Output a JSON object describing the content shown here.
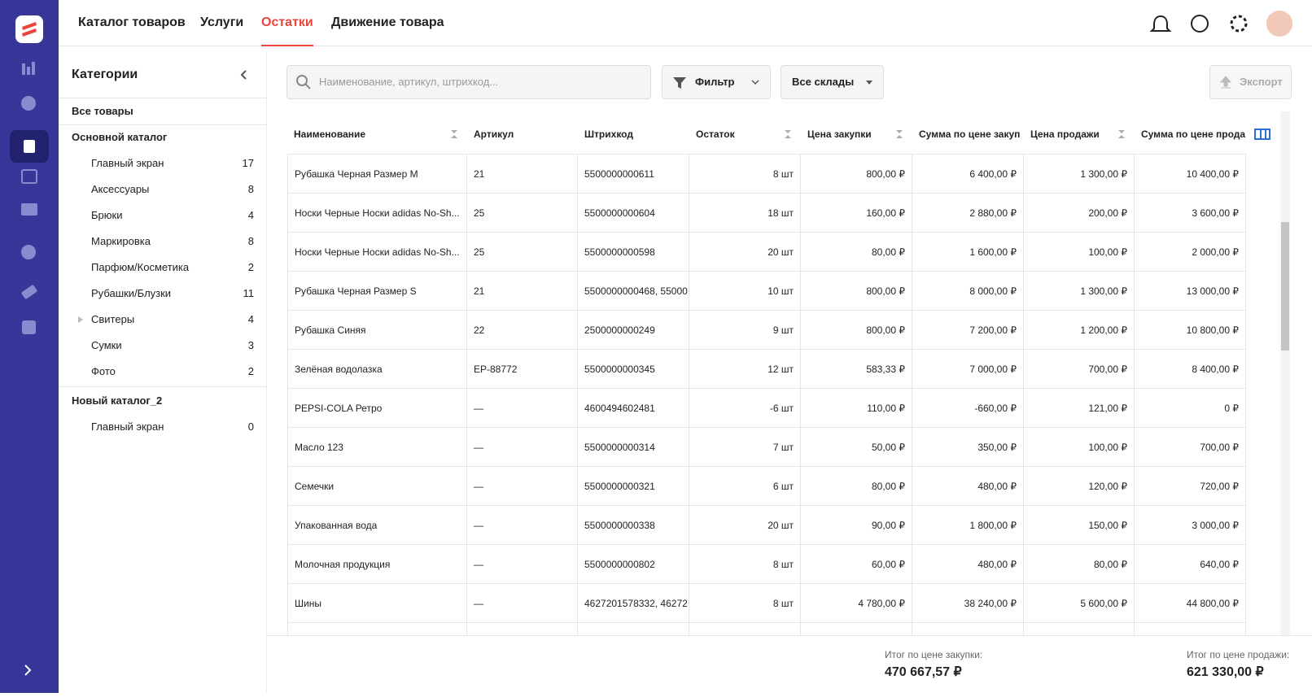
{
  "nav": {
    "tabs": [
      "Каталог товаров",
      "Услуги",
      "Остатки",
      "Движение товара"
    ],
    "active": 2
  },
  "sidebar": {
    "title": "Категории",
    "items": [
      {
        "label": "Все товары",
        "level": 0
      },
      {
        "label": "Основной каталог",
        "level": 0
      },
      {
        "label": "Главный экран",
        "level": 1,
        "count": "17"
      },
      {
        "label": "Аксессуары",
        "level": 1,
        "count": "8"
      },
      {
        "label": "Брюки",
        "level": 1,
        "count": "4"
      },
      {
        "label": "Маркировка",
        "level": 1,
        "count": "8"
      },
      {
        "label": "Парфюм/Косметика",
        "level": 1,
        "count": "2"
      },
      {
        "label": "Рубашки/Блузки",
        "level": 1,
        "count": "11"
      },
      {
        "label": "Свитеры",
        "level": 1,
        "count": "4",
        "expandable": true
      },
      {
        "label": "Сумки",
        "level": 1,
        "count": "3"
      },
      {
        "label": "Фото",
        "level": 1,
        "count": "2"
      },
      {
        "label": "Новый каталог_2",
        "level": 0
      },
      {
        "label": "Главный экран",
        "level": 1,
        "count": "0"
      }
    ]
  },
  "toolbar": {
    "search_placeholder": "Наименование, артикул, штрихкод...",
    "filter": "Фильтр",
    "warehouse": "Все склады",
    "export": "Экспорт"
  },
  "table": {
    "headers": [
      "Наименование",
      "Артикул",
      "Штрихкод",
      "Остаток",
      "Цена закупки",
      "Сумма по цене закуп",
      "Цена продажи",
      "Сумма по цене прода"
    ],
    "rows": [
      [
        "Рубашка Черная Размер M",
        "21",
        "5500000000611",
        "8 шт",
        "800,00 ₽",
        "6 400,00 ₽",
        "1 300,00 ₽",
        "10 400,00 ₽"
      ],
      [
        "Носки Черные Носки adidas No-Sh...",
        "25",
        "5500000000604",
        "18 шт",
        "160,00 ₽",
        "2 880,00 ₽",
        "200,00 ₽",
        "3 600,00 ₽"
      ],
      [
        "Носки Черные Носки adidas No-Sh...",
        "25",
        "5500000000598",
        "20 шт",
        "80,00 ₽",
        "1 600,00 ₽",
        "100,00 ₽",
        "2 000,00 ₽"
      ],
      [
        "Рубашка Черная Размер S",
        "21",
        "5500000000468, 55000",
        "10 шт",
        "800,00 ₽",
        "8 000,00 ₽",
        "1 300,00 ₽",
        "13 000,00 ₽"
      ],
      [
        "Рубашка Синяя",
        "22",
        "2500000000249",
        "9 шт",
        "800,00 ₽",
        "7 200,00 ₽",
        "1 200,00 ₽",
        "10 800,00 ₽"
      ],
      [
        "Зелёная водолазка",
        "EP-88772",
        "5500000000345",
        "12 шт",
        "583,33 ₽",
        "7 000,00 ₽",
        "700,00 ₽",
        "8 400,00 ₽"
      ],
      [
        "PEPSI-COLA Ретро",
        "—",
        "4600494602481",
        "-6 шт",
        "110,00 ₽",
        "-660,00 ₽",
        "121,00 ₽",
        "0 ₽"
      ],
      [
        "Масло 123",
        "—",
        "5500000000314",
        "7 шт",
        "50,00 ₽",
        "350,00 ₽",
        "100,00 ₽",
        "700,00 ₽"
      ],
      [
        "Семечки",
        "—",
        "5500000000321",
        "6 шт",
        "80,00 ₽",
        "480,00 ₽",
        "120,00 ₽",
        "720,00 ₽"
      ],
      [
        "Упакованная вода",
        "—",
        "5500000000338",
        "20 шт",
        "90,00 ₽",
        "1 800,00 ₽",
        "150,00 ₽",
        "3 000,00 ₽"
      ],
      [
        "Молочная продукция",
        "—",
        "5500000000802",
        "8 шт",
        "60,00 ₽",
        "480,00 ₽",
        "80,00 ₽",
        "640,00 ₽"
      ],
      [
        "Шины",
        "—",
        "4627201578332, 46272",
        "8 шт",
        "4 780,00 ₽",
        "38 240,00 ₽",
        "5 600,00 ₽",
        "44 800,00 ₽"
      ]
    ]
  },
  "footer": {
    "purchase_label": "Итог по цене закупки:",
    "purchase_total": "470 667,57 ₽",
    "sale_label": "Итог по цене продажи:",
    "sale_total": "621 330,00 ₽"
  }
}
